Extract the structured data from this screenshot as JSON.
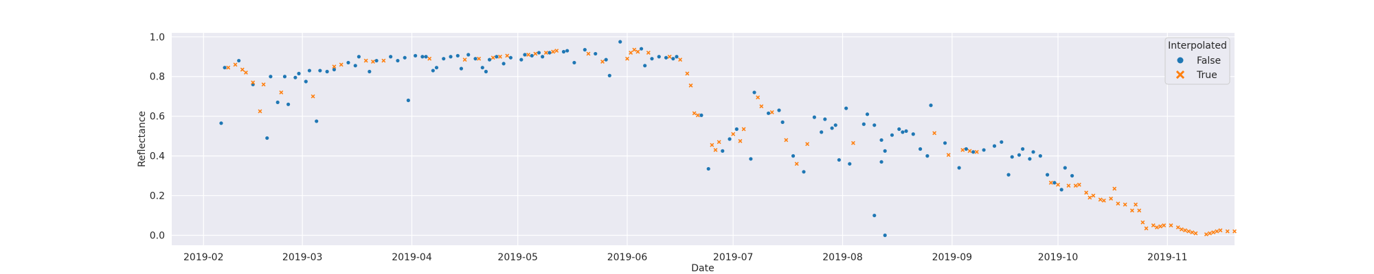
{
  "chart_data": {
    "type": "scatter",
    "title": "",
    "xlabel": "Date",
    "ylabel": "Reflectance",
    "x_ticks": [
      "2019-02",
      "2019-03",
      "2019-04",
      "2019-05",
      "2019-06",
      "2019-07",
      "2019-08",
      "2019-09",
      "2019-10",
      "2019-11"
    ],
    "y_ticks": [
      "0.0",
      "0.2",
      "0.4",
      "0.6",
      "0.8",
      "1.0"
    ],
    "xlim": [
      "2019-01-23",
      "2019-11-20"
    ],
    "ylim": [
      -0.05,
      1.02
    ],
    "grid": true,
    "legend": {
      "title": "Interpolated",
      "position": "top-right"
    },
    "series": [
      {
        "name": "False",
        "marker": "circle",
        "color": "#1f77b4",
        "points": [
          [
            "2019-02-06",
            0.565
          ],
          [
            "2019-02-07",
            0.845
          ],
          [
            "2019-02-11",
            0.88
          ],
          [
            "2019-02-15",
            0.76
          ],
          [
            "2019-02-19",
            0.49
          ],
          [
            "2019-02-20",
            0.8
          ],
          [
            "2019-02-22",
            0.67
          ],
          [
            "2019-02-24",
            0.8
          ],
          [
            "2019-02-25",
            0.66
          ],
          [
            "2019-02-27",
            0.795
          ],
          [
            "2019-02-28",
            0.815
          ],
          [
            "2019-03-02",
            0.775
          ],
          [
            "2019-03-03",
            0.83
          ],
          [
            "2019-03-05",
            0.575
          ],
          [
            "2019-03-06",
            0.83
          ],
          [
            "2019-03-08",
            0.825
          ],
          [
            "2019-03-10",
            0.835
          ],
          [
            "2019-03-14",
            0.87
          ],
          [
            "2019-03-16",
            0.855
          ],
          [
            "2019-03-17",
            0.9
          ],
          [
            "2019-03-20",
            0.825
          ],
          [
            "2019-03-22",
            0.88
          ],
          [
            "2019-03-26",
            0.9
          ],
          [
            "2019-03-28",
            0.88
          ],
          [
            "2019-03-30",
            0.895
          ],
          [
            "2019-03-31",
            0.68
          ],
          [
            "2019-04-02",
            0.905
          ],
          [
            "2019-04-04",
            0.9
          ],
          [
            "2019-04-05",
            0.9
          ],
          [
            "2019-04-07",
            0.83
          ],
          [
            "2019-04-08",
            0.845
          ],
          [
            "2019-04-10",
            0.89
          ],
          [
            "2019-04-12",
            0.9
          ],
          [
            "2019-04-14",
            0.905
          ],
          [
            "2019-04-15",
            0.84
          ],
          [
            "2019-04-17",
            0.91
          ],
          [
            "2019-04-19",
            0.89
          ],
          [
            "2019-04-21",
            0.845
          ],
          [
            "2019-04-22",
            0.825
          ],
          [
            "2019-04-23",
            0.885
          ],
          [
            "2019-04-25",
            0.9
          ],
          [
            "2019-04-27",
            0.865
          ],
          [
            "2019-04-29",
            0.895
          ],
          [
            "2019-05-02",
            0.885
          ],
          [
            "2019-05-03",
            0.91
          ],
          [
            "2019-05-05",
            0.905
          ],
          [
            "2019-05-07",
            0.92
          ],
          [
            "2019-05-08",
            0.9
          ],
          [
            "2019-05-10",
            0.92
          ],
          [
            "2019-05-14",
            0.925
          ],
          [
            "2019-05-15",
            0.93
          ],
          [
            "2019-05-17",
            0.87
          ],
          [
            "2019-05-20",
            0.935
          ],
          [
            "2019-05-23",
            0.915
          ],
          [
            "2019-05-26",
            0.885
          ],
          [
            "2019-05-27",
            0.805
          ],
          [
            "2019-05-30",
            0.975
          ],
          [
            "2019-06-05",
            0.94
          ],
          [
            "2019-06-06",
            0.855
          ],
          [
            "2019-06-08",
            0.89
          ],
          [
            "2019-06-10",
            0.9
          ],
          [
            "2019-06-12",
            0.895
          ],
          [
            "2019-06-14",
            0.89
          ],
          [
            "2019-06-15",
            0.9
          ],
          [
            "2019-06-22",
            0.605
          ],
          [
            "2019-06-24",
            0.335
          ],
          [
            "2019-06-28",
            0.425
          ],
          [
            "2019-06-30",
            0.485
          ],
          [
            "2019-07-02",
            0.535
          ],
          [
            "2019-07-06",
            0.385
          ],
          [
            "2019-07-07",
            0.72
          ],
          [
            "2019-07-11",
            0.615
          ],
          [
            "2019-07-14",
            0.63
          ],
          [
            "2019-07-15",
            0.57
          ],
          [
            "2019-07-18",
            0.4
          ],
          [
            "2019-07-21",
            0.32
          ],
          [
            "2019-07-24",
            0.595
          ],
          [
            "2019-07-26",
            0.52
          ],
          [
            "2019-07-27",
            0.585
          ],
          [
            "2019-07-29",
            0.54
          ],
          [
            "2019-07-30",
            0.555
          ],
          [
            "2019-07-31",
            0.38
          ],
          [
            "2019-08-02",
            0.64
          ],
          [
            "2019-08-03",
            0.36
          ],
          [
            "2019-08-07",
            0.56
          ],
          [
            "2019-08-08",
            0.61
          ],
          [
            "2019-08-10",
            0.555
          ],
          [
            "2019-08-12",
            0.48
          ],
          [
            "2019-08-13",
            0.425
          ],
          [
            "2019-08-15",
            0.505
          ],
          [
            "2019-08-17",
            0.535
          ],
          [
            "2019-08-18",
            0.52
          ],
          [
            "2019-08-19",
            0.525
          ],
          [
            "2019-08-21",
            0.51
          ],
          [
            "2019-08-23",
            0.435
          ],
          [
            "2019-08-25",
            0.4
          ],
          [
            "2019-08-26",
            0.655
          ],
          [
            "2019-08-30",
            0.465
          ],
          [
            "2019-09-03",
            0.34
          ],
          [
            "2019-09-05",
            0.435
          ],
          [
            "2019-09-07",
            0.42
          ],
          [
            "2019-09-10",
            0.43
          ],
          [
            "2019-09-13",
            0.45
          ],
          [
            "2019-09-15",
            0.47
          ],
          [
            "2019-09-17",
            0.305
          ],
          [
            "2019-09-18",
            0.395
          ],
          [
            "2019-09-20",
            0.405
          ],
          [
            "2019-09-21",
            0.435
          ],
          [
            "2019-09-23",
            0.385
          ],
          [
            "2019-09-24",
            0.42
          ],
          [
            "2019-09-26",
            0.4
          ],
          [
            "2019-09-28",
            0.305
          ],
          [
            "2019-09-30",
            0.265
          ],
          [
            "2019-10-02",
            0.23
          ],
          [
            "2019-10-03",
            0.34
          ],
          [
            "2019-10-05",
            0.3
          ],
          [
            "2019-08-10",
            0.1
          ],
          [
            "2019-08-12",
            0.37
          ],
          [
            "2019-08-13",
            0.0
          ]
        ]
      },
      {
        "name": "True",
        "marker": "x",
        "color": "#ff7f0e",
        "points": [
          [
            "2019-02-08",
            0.845
          ],
          [
            "2019-02-10",
            0.86
          ],
          [
            "2019-02-12",
            0.835
          ],
          [
            "2019-02-13",
            0.82
          ],
          [
            "2019-02-15",
            0.77
          ],
          [
            "2019-02-17",
            0.625
          ],
          [
            "2019-02-18",
            0.76
          ],
          [
            "2019-02-23",
            0.72
          ],
          [
            "2019-03-04",
            0.7
          ],
          [
            "2019-03-10",
            0.85
          ],
          [
            "2019-03-12",
            0.86
          ],
          [
            "2019-03-19",
            0.88
          ],
          [
            "2019-03-21",
            0.875
          ],
          [
            "2019-03-24",
            0.88
          ],
          [
            "2019-04-06",
            0.89
          ],
          [
            "2019-04-16",
            0.885
          ],
          [
            "2019-04-20",
            0.89
          ],
          [
            "2019-04-24",
            0.895
          ],
          [
            "2019-04-26",
            0.9
          ],
          [
            "2019-04-28",
            0.905
          ],
          [
            "2019-05-04",
            0.91
          ],
          [
            "2019-05-06",
            0.915
          ],
          [
            "2019-05-09",
            0.92
          ],
          [
            "2019-05-11",
            0.925
          ],
          [
            "2019-05-12",
            0.93
          ],
          [
            "2019-05-21",
            0.915
          ],
          [
            "2019-05-25",
            0.875
          ],
          [
            "2019-06-01",
            0.89
          ],
          [
            "2019-06-02",
            0.92
          ],
          [
            "2019-06-03",
            0.935
          ],
          [
            "2019-06-04",
            0.925
          ],
          [
            "2019-06-07",
            0.92
          ],
          [
            "2019-06-13",
            0.9
          ],
          [
            "2019-06-16",
            0.885
          ],
          [
            "2019-06-18",
            0.815
          ],
          [
            "2019-06-19",
            0.755
          ],
          [
            "2019-06-20",
            0.615
          ],
          [
            "2019-06-21",
            0.605
          ],
          [
            "2019-06-25",
            0.455
          ],
          [
            "2019-06-26",
            0.43
          ],
          [
            "2019-06-27",
            0.47
          ],
          [
            "2019-07-01",
            0.51
          ],
          [
            "2019-07-03",
            0.475
          ],
          [
            "2019-07-04",
            0.535
          ],
          [
            "2019-07-08",
            0.695
          ],
          [
            "2019-07-09",
            0.65
          ],
          [
            "2019-07-12",
            0.62
          ],
          [
            "2019-07-16",
            0.48
          ],
          [
            "2019-07-19",
            0.36
          ],
          [
            "2019-07-22",
            0.46
          ],
          [
            "2019-08-04",
            0.465
          ],
          [
            "2019-08-27",
            0.515
          ],
          [
            "2019-08-31",
            0.405
          ],
          [
            "2019-09-04",
            0.43
          ],
          [
            "2019-09-06",
            0.425
          ],
          [
            "2019-09-08",
            0.42
          ],
          [
            "2019-09-29",
            0.265
          ],
          [
            "2019-10-01",
            0.255
          ],
          [
            "2019-10-04",
            0.25
          ],
          [
            "2019-10-06",
            0.25
          ],
          [
            "2019-10-07",
            0.255
          ],
          [
            "2019-10-09",
            0.215
          ],
          [
            "2019-10-10",
            0.19
          ],
          [
            "2019-10-11",
            0.2
          ],
          [
            "2019-10-13",
            0.18
          ],
          [
            "2019-10-14",
            0.175
          ],
          [
            "2019-10-16",
            0.185
          ],
          [
            "2019-10-17",
            0.235
          ],
          [
            "2019-10-18",
            0.16
          ],
          [
            "2019-10-20",
            0.155
          ],
          [
            "2019-10-22",
            0.125
          ],
          [
            "2019-10-23",
            0.155
          ],
          [
            "2019-10-24",
            0.125
          ],
          [
            "2019-10-25",
            0.065
          ],
          [
            "2019-10-26",
            0.035
          ],
          [
            "2019-10-28",
            0.05
          ],
          [
            "2019-10-29",
            0.04
          ],
          [
            "2019-10-30",
            0.045
          ],
          [
            "2019-10-31",
            0.05
          ],
          [
            "2019-11-02",
            0.05
          ],
          [
            "2019-11-04",
            0.04
          ],
          [
            "2019-11-05",
            0.03
          ],
          [
            "2019-11-06",
            0.025
          ],
          [
            "2019-11-07",
            0.02
          ],
          [
            "2019-11-08",
            0.015
          ],
          [
            "2019-11-09",
            0.01
          ],
          [
            "2019-11-12",
            0.005
          ],
          [
            "2019-11-13",
            0.01
          ],
          [
            "2019-11-14",
            0.015
          ],
          [
            "2019-11-15",
            0.02
          ],
          [
            "2019-11-16",
            0.025
          ],
          [
            "2019-11-18",
            0.02
          ],
          [
            "2019-11-20",
            0.02
          ]
        ]
      }
    ]
  }
}
